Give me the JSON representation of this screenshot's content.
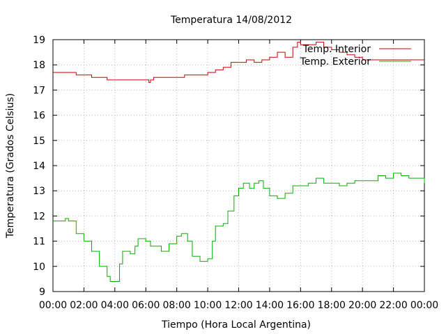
{
  "chart_data": {
    "type": "line",
    "title": "Temperatura 14/08/2012",
    "xlabel": "Tiempo (Hora Local Argentina)",
    "ylabel": "Temperatura (Grados Celsius)",
    "xlim": [
      0,
      24
    ],
    "ylim": [
      9,
      19
    ],
    "grid": true,
    "legend_position": "top-right",
    "x_tick_labels": [
      "00:00",
      "02:00",
      "04:00",
      "06:00",
      "08:00",
      "10:00",
      "12:00",
      "14:00",
      "16:00",
      "18:00",
      "20:00",
      "22:00",
      "00:00"
    ],
    "y_tick_labels": [
      "9",
      "10",
      "11",
      "12",
      "13",
      "14",
      "15",
      "16",
      "17",
      "18",
      "19"
    ],
    "series": [
      {
        "name": "Temp. Interior",
        "color": "#cc0000",
        "x": [
          0,
          0.5,
          1,
          1.5,
          2,
          2.5,
          3,
          3.5,
          4,
          4.5,
          5,
          5.5,
          6,
          6.2,
          6.3,
          6.5,
          7,
          7.5,
          8,
          8.5,
          9,
          9.5,
          10,
          10.5,
          11,
          11.5,
          12,
          12.5,
          13,
          13.5,
          14,
          14.5,
          15,
          15.5,
          15.8,
          16,
          16.5,
          17,
          17.5,
          18,
          18.5,
          19,
          19.5,
          20,
          21,
          22,
          23,
          24
        ],
        "y": [
          17.7,
          17.7,
          17.7,
          17.6,
          17.6,
          17.5,
          17.5,
          17.4,
          17.4,
          17.4,
          17.4,
          17.4,
          17.4,
          17.3,
          17.4,
          17.5,
          17.5,
          17.5,
          17.5,
          17.6,
          17.6,
          17.6,
          17.7,
          17.8,
          17.9,
          18.1,
          18.1,
          18.2,
          18.1,
          18.2,
          18.3,
          18.5,
          18.3,
          18.7,
          18.9,
          18.8,
          18.8,
          18.9,
          18.7,
          18.6,
          18.5,
          18.4,
          18.3,
          18.2,
          18.2,
          18.2,
          18.2,
          18.2
        ]
      },
      {
        "name": "Temp. Exterior",
        "color": "#00b000",
        "x": [
          0,
          0.5,
          0.8,
          1,
          1.5,
          2,
          2.5,
          3,
          3.5,
          3.7,
          4,
          4.3,
          4.5,
          5,
          5.3,
          5.5,
          6,
          6.3,
          6.7,
          7,
          7.5,
          8,
          8.3,
          8.7,
          9,
          9.5,
          10,
          10.3,
          10.5,
          11,
          11.3,
          11.7,
          12,
          12.3,
          12.7,
          13,
          13.3,
          13.6,
          14,
          14.5,
          15,
          15.5,
          16,
          16.5,
          17,
          17.5,
          18,
          18.5,
          19,
          19.5,
          20,
          20.5,
          21,
          21.5,
          22,
          22.5,
          23,
          23.5,
          24
        ],
        "y": [
          11.8,
          11.8,
          11.9,
          11.8,
          11.3,
          11.0,
          10.6,
          10.0,
          9.6,
          9.4,
          9.4,
          10.1,
          10.6,
          10.5,
          10.8,
          11.1,
          11.0,
          10.8,
          10.8,
          10.6,
          10.9,
          11.2,
          11.3,
          11.0,
          10.4,
          10.2,
          10.3,
          11.0,
          11.6,
          11.7,
          12.2,
          12.8,
          13.1,
          13.3,
          13.1,
          13.3,
          13.4,
          13.1,
          12.8,
          12.7,
          12.9,
          13.2,
          13.2,
          13.3,
          13.5,
          13.3,
          13.3,
          13.2,
          13.3,
          13.4,
          13.4,
          13.4,
          13.6,
          13.5,
          13.7,
          13.6,
          13.5,
          13.5,
          13.3
        ]
      }
    ]
  }
}
